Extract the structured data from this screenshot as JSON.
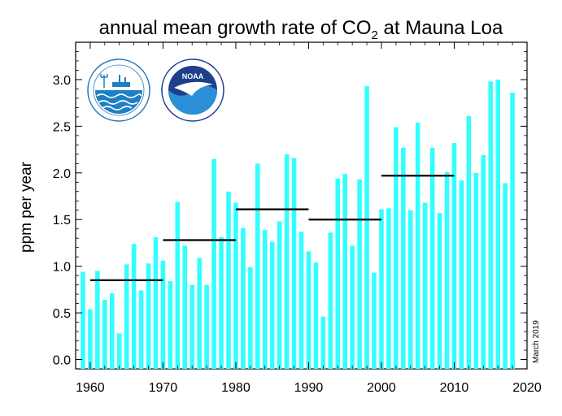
{
  "chart_data": {
    "type": "bar",
    "title_main": "annual mean growth rate of CO",
    "title_sub": "2",
    "title_tail": " at Mauna Loa",
    "xlabel": "",
    "ylabel": "ppm per year",
    "xlim": [
      1958,
      2020
    ],
    "ylim": [
      -0.1,
      3.4
    ],
    "x_ticks": [
      1960,
      1970,
      1980,
      1990,
      2000,
      2010,
      2020
    ],
    "y_ticks": [
      0.0,
      0.5,
      1.0,
      1.5,
      2.0,
      2.5,
      3.0
    ],
    "y_tick_labels": [
      "0.0",
      "0.5",
      "1.0",
      "1.5",
      "2.0",
      "2.5",
      "3.0"
    ],
    "bar_color": "#33ffff",
    "grid": false,
    "years": [
      1959,
      1960,
      1961,
      1962,
      1963,
      1964,
      1965,
      1966,
      1967,
      1968,
      1969,
      1970,
      1971,
      1972,
      1973,
      1974,
      1975,
      1976,
      1977,
      1978,
      1979,
      1980,
      1981,
      1982,
      1983,
      1984,
      1985,
      1986,
      1987,
      1988,
      1989,
      1990,
      1991,
      1992,
      1993,
      1994,
      1995,
      1996,
      1997,
      1998,
      1999,
      2000,
      2001,
      2002,
      2003,
      2004,
      2005,
      2006,
      2007,
      2008,
      2009,
      2010,
      2011,
      2012,
      2013,
      2014,
      2015,
      2016,
      2017,
      2018
    ],
    "values": [
      0.94,
      0.54,
      0.95,
      0.64,
      0.71,
      0.28,
      1.02,
      1.24,
      0.74,
      1.03,
      1.31,
      1.06,
      0.84,
      1.69,
      1.22,
      0.8,
      1.09,
      0.8,
      2.15,
      1.31,
      1.8,
      1.68,
      1.41,
      0.99,
      2.1,
      1.39,
      1.26,
      1.48,
      2.2,
      2.16,
      1.37,
      1.16,
      1.04,
      0.46,
      1.36,
      1.94,
      1.99,
      1.22,
      1.93,
      2.93,
      0.93,
      1.61,
      1.62,
      2.49,
      2.27,
      1.6,
      2.54,
      1.68,
      2.27,
      1.57,
      2.01,
      2.32,
      1.92,
      2.61,
      2.0,
      2.19,
      2.98,
      3.0,
      1.89,
      2.86
    ],
    "decade_means": [
      {
        "start": 1960,
        "end": 1970,
        "value": 0.85
      },
      {
        "start": 1970,
        "end": 1980,
        "value": 1.28
      },
      {
        "start": 1980,
        "end": 1990,
        "value": 1.61
      },
      {
        "start": 1990,
        "end": 2000,
        "value": 1.5
      },
      {
        "start": 2000,
        "end": 2010,
        "value": 1.97
      }
    ],
    "annotation": "March 2019"
  },
  "logos": {
    "scripps": {
      "icon": "scripps-institution-logo",
      "text": "SCRIPPS INSTITUTION OF OCEANOGRAPHY",
      "subtext": "UCSD"
    },
    "noaa": {
      "icon": "noaa-logo",
      "text": "NOAA",
      "ring_text": "NATIONAL OCEANIC AND ATMOSPHERIC ADMINISTRATION",
      "ring_text_bottom": "U.S. DEPARTMENT OF COMMERCE"
    }
  }
}
